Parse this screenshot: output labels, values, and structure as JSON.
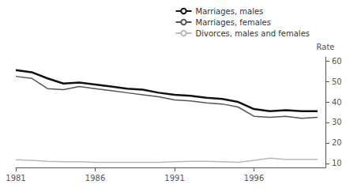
{
  "chart_data": {
    "type": "line",
    "ylabel": "Rate",
    "x": [
      1981,
      1982,
      1983,
      1984,
      1985,
      1986,
      1987,
      1988,
      1989,
      1990,
      1991,
      1992,
      1993,
      1994,
      1995,
      1996,
      1997,
      1998,
      1999,
      2000
    ],
    "series": [
      {
        "name": "Marriages, males",
        "color": "#111111",
        "values": [
          55.5,
          54.5,
          51.5,
          49.0,
          49.5,
          48.5,
          47.5,
          46.5,
          46.0,
          44.5,
          43.5,
          43.0,
          42.0,
          41.5,
          40.0,
          36.5,
          35.5,
          36.0,
          35.5,
          35.5
        ]
      },
      {
        "name": "Marriages, females",
        "color": "#555555",
        "values": [
          52.5,
          51.5,
          46.5,
          46.0,
          47.5,
          46.5,
          45.5,
          44.5,
          43.5,
          42.5,
          41.0,
          40.5,
          39.5,
          39.0,
          37.5,
          33.0,
          32.5,
          33.0,
          32.0,
          32.5
        ]
      },
      {
        "name": "Divorces, males and females",
        "color": "#b8b8b8",
        "values": [
          11.8,
          11.5,
          11.0,
          10.8,
          10.8,
          10.5,
          10.5,
          10.5,
          10.5,
          10.5,
          10.8,
          11.0,
          11.0,
          10.8,
          10.5,
          11.5,
          12.5,
          12.0,
          12.0,
          12.0
        ]
      }
    ],
    "xlim": [
      1981,
      2000.5
    ],
    "xticks": [
      1981,
      1986,
      1991,
      1996
    ],
    "ylim": [
      8,
      62
    ],
    "yticks": [
      10,
      20,
      30,
      40,
      50,
      60
    ],
    "grid": false,
    "legend": "upper right"
  }
}
